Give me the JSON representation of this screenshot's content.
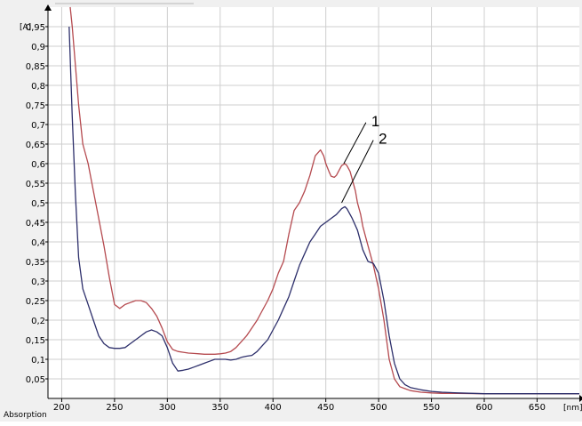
{
  "chart_data": {
    "type": "line",
    "y_unit_label": "[A]",
    "x_unit_label": "[nm]",
    "ylabel": "Absorption",
    "xlim": [
      187,
      690
    ],
    "ylim": [
      0,
      1.0
    ],
    "x_ticks": [
      200,
      250,
      300,
      350,
      400,
      450,
      500,
      550,
      600,
      650
    ],
    "x_tick_labels": [
      "200",
      "250",
      "300",
      "350",
      "400",
      "450",
      "500",
      "550",
      "600",
      "650"
    ],
    "y_ticks": [
      0.05,
      0.1,
      0.15,
      0.2,
      0.25,
      0.3,
      0.35,
      0.4,
      0.45,
      0.5,
      0.55,
      0.6,
      0.65,
      0.7,
      0.75,
      0.8,
      0.85,
      0.9,
      0.95
    ],
    "y_tick_labels": [
      "0,05",
      "0,1",
      "0,15",
      "0,2",
      "0,25",
      "0,3",
      "0,35",
      "0,4",
      "0,45",
      "0,5",
      "0,55",
      "0,6",
      "0,65",
      "0,7",
      "0,75",
      "0,8",
      "0,85",
      "0,9",
      "0,95"
    ],
    "grid": true,
    "series": [
      {
        "color": "#b54a4f",
        "x": [
          208,
          210,
          213,
          216,
          220,
          225,
          230,
          235,
          240,
          245,
          250,
          255,
          260,
          265,
          270,
          275,
          280,
          285,
          290,
          295,
          300,
          305,
          310,
          315,
          320,
          325,
          330,
          335,
          340,
          345,
          350,
          355,
          360,
          365,
          370,
          375,
          380,
          385,
          390,
          395,
          400,
          405,
          410,
          415,
          420,
          425,
          430,
          435,
          440,
          445,
          448,
          450,
          453,
          455,
          458,
          460,
          463,
          465,
          468,
          470,
          473,
          475,
          478,
          480,
          483,
          485,
          488,
          490,
          495,
          500,
          505,
          510,
          515,
          520,
          525,
          530,
          540,
          550,
          560,
          575,
          600,
          625,
          650,
          675,
          690
        ],
        "y": [
          1.02,
          0.95,
          0.85,
          0.75,
          0.65,
          0.6,
          0.53,
          0.46,
          0.39,
          0.31,
          0.24,
          0.23,
          0.24,
          0.245,
          0.25,
          0.25,
          0.245,
          0.23,
          0.21,
          0.18,
          0.145,
          0.125,
          0.12,
          0.118,
          0.116,
          0.115,
          0.114,
          0.113,
          0.113,
          0.113,
          0.114,
          0.116,
          0.12,
          0.13,
          0.145,
          0.16,
          0.18,
          0.2,
          0.225,
          0.25,
          0.28,
          0.32,
          0.35,
          0.42,
          0.48,
          0.5,
          0.53,
          0.57,
          0.62,
          0.635,
          0.62,
          0.6,
          0.58,
          0.568,
          0.565,
          0.57,
          0.585,
          0.595,
          0.6,
          0.595,
          0.58,
          0.56,
          0.53,
          0.5,
          0.47,
          0.44,
          0.41,
          0.39,
          0.34,
          0.28,
          0.2,
          0.1,
          0.05,
          0.03,
          0.025,
          0.02,
          0.016,
          0.014,
          0.013,
          0.013,
          0.012,
          0.012,
          0.012,
          0.012,
          0.012
        ]
      },
      {
        "color": "#2d2f6b",
        "x": [
          207,
          210,
          213,
          216,
          220,
          225,
          230,
          235,
          240,
          245,
          250,
          255,
          260,
          265,
          270,
          275,
          280,
          285,
          290,
          295,
          300,
          305,
          310,
          315,
          320,
          325,
          330,
          335,
          340,
          345,
          350,
          355,
          360,
          365,
          370,
          375,
          380,
          385,
          390,
          395,
          400,
          405,
          410,
          415,
          420,
          425,
          430,
          435,
          440,
          445,
          450,
          455,
          460,
          465,
          468,
          470,
          475,
          480,
          485,
          490,
          495,
          500,
          505,
          510,
          515,
          520,
          525,
          530,
          540,
          550,
          560,
          575,
          600,
          625,
          650,
          675,
          690
        ],
        "y": [
          0.95,
          0.72,
          0.52,
          0.36,
          0.28,
          0.24,
          0.2,
          0.16,
          0.14,
          0.13,
          0.128,
          0.128,
          0.13,
          0.14,
          0.15,
          0.16,
          0.17,
          0.175,
          0.17,
          0.16,
          0.13,
          0.09,
          0.07,
          0.072,
          0.075,
          0.08,
          0.085,
          0.09,
          0.095,
          0.1,
          0.1,
          0.1,
          0.098,
          0.1,
          0.105,
          0.108,
          0.11,
          0.12,
          0.135,
          0.15,
          0.175,
          0.2,
          0.23,
          0.26,
          0.3,
          0.34,
          0.37,
          0.4,
          0.42,
          0.44,
          0.45,
          0.46,
          0.47,
          0.485,
          0.49,
          0.485,
          0.46,
          0.43,
          0.38,
          0.35,
          0.345,
          0.32,
          0.25,
          0.16,
          0.09,
          0.05,
          0.035,
          0.028,
          0.022,
          0.018,
          0.016,
          0.014,
          0.012,
          0.012,
          0.012,
          0.012,
          0.012
        ]
      }
    ],
    "annotations": [
      {
        "text": "1",
        "x": 467,
        "y": 0.6,
        "lx": 488,
        "ly": 0.705
      },
      {
        "text": "2",
        "x": 465,
        "y": 0.5,
        "lx": 495,
        "ly": 0.66
      }
    ]
  }
}
